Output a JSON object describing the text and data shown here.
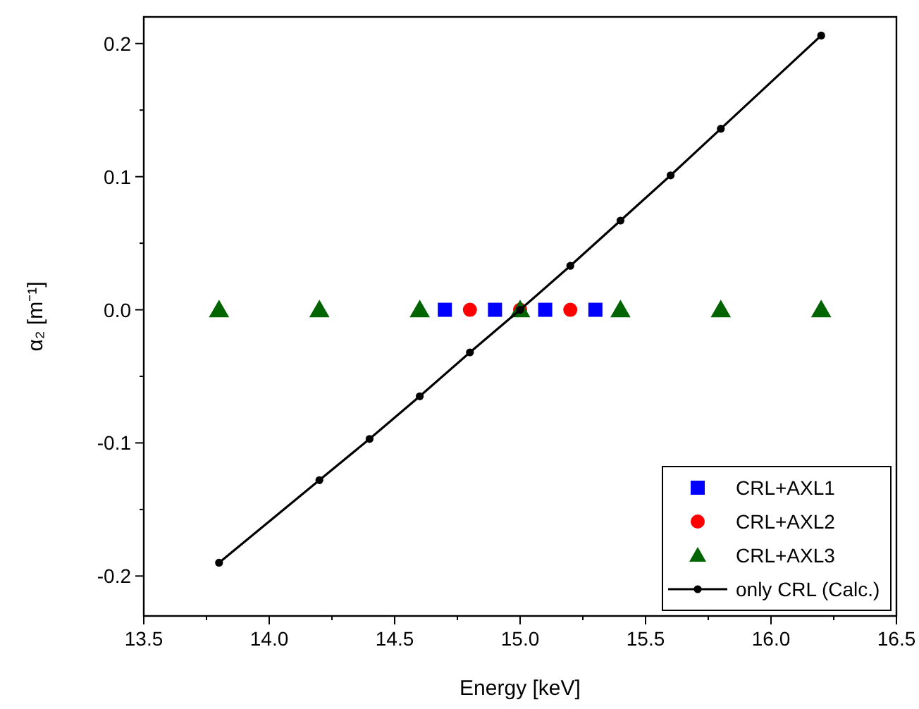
{
  "chart_data": {
    "type": "scatter",
    "xlabel": "Energy [keV]",
    "ylabel": "α₂ [m⁻¹]",
    "xlim": [
      13.5,
      16.5
    ],
    "ylim": [
      -0.23,
      0.22
    ],
    "xticks": [
      13.5,
      {
        "value": 13.75,
        "label": null
      },
      {
        "value": 14,
        "label": "14.0"
      },
      {
        "value": 14.25,
        "label": null
      },
      14.5,
      {
        "value": 14.75,
        "label": null
      },
      {
        "value": 15,
        "label": "15.0"
      },
      {
        "value": 15.25,
        "label": null
      },
      15.5,
      {
        "value": 15.75,
        "label": null
      },
      {
        "value": 16,
        "label": "16.0"
      },
      {
        "value": 16.25,
        "label": null
      },
      16.5
    ],
    "yticks": [
      -0.2,
      {
        "value": -0.15,
        "label": null
      },
      -0.1,
      {
        "value": -0.05,
        "label": null
      },
      {
        "value": 0,
        "label": "0.0"
      },
      {
        "value": 0.05,
        "label": null
      },
      0.1,
      {
        "value": 0.15,
        "label": null
      },
      0.2
    ],
    "legend": "bottom right",
    "grid": false,
    "series": [
      {
        "name": "CRL+AXL1",
        "marker": "square",
        "color": "#0000ff",
        "x": [
          14.7,
          14.9,
          15.1,
          15.3
        ],
        "values": [
          0,
          0,
          0,
          0
        ]
      },
      {
        "name": "CRL+AXL2",
        "marker": "circle",
        "color": "#ff0000",
        "x": [
          14.8,
          15.0,
          15.2
        ],
        "values": [
          0,
          0,
          0
        ]
      },
      {
        "name": "CRL+AXL3",
        "marker": "triangle",
        "color": "#006400",
        "x": [
          13.8,
          14.2,
          14.6,
          15.0,
          15.4,
          15.8,
          16.2
        ],
        "values": [
          0,
          0,
          0,
          0,
          0,
          0,
          0
        ]
      },
      {
        "name": "only CRL (Calc.)",
        "type": "line",
        "marker": "circle",
        "color": "#000000",
        "x": [
          13.8,
          14.2,
          14.4,
          14.6,
          14.8,
          15.0,
          15.2,
          15.4,
          15.6,
          15.8,
          16.2
        ],
        "values": [
          -0.19,
          -0.128,
          -0.097,
          -0.065,
          -0.032,
          0.0,
          0.033,
          0.067,
          0.101,
          0.136,
          0.206
        ]
      }
    ]
  }
}
